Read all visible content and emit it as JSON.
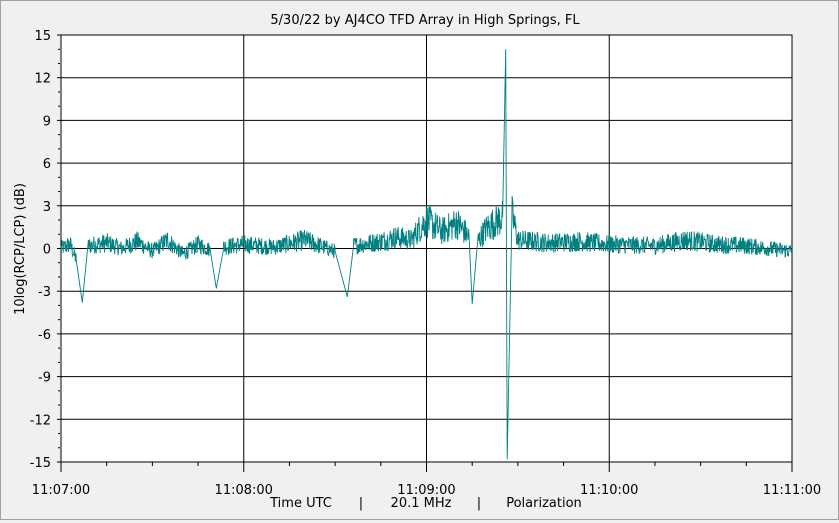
{
  "chart_data": {
    "type": "line",
    "title": "5/30/22  by  AJ4CO TFD Array  in  High Springs, FL",
    "ylabel": "10log(RCP/LCP)  (dB)",
    "xlabel_parts": [
      "Time UTC",
      "|",
      "20.1 MHz",
      "|",
      "Polarization"
    ],
    "ylim": [
      -15,
      15
    ],
    "yticks": [
      "15",
      "12",
      "9",
      "6",
      "3",
      "0",
      "-3",
      "-6",
      "-9",
      "-12",
      "-15"
    ],
    "xticks": [
      "11:07:00",
      "11:08:00",
      "11:09:00",
      "11:10:00",
      "11:11:00"
    ],
    "grid": true,
    "line_color": "#008080",
    "series": [
      {
        "x_range": [
          "11:07:00",
          "11:11:00"
        ],
        "points": [
          [
            "11:07:00",
            0.0
          ],
          [
            "11:07:03",
            0.3
          ],
          [
            "11:07:05",
            -0.8
          ],
          [
            "11:07:07",
            -3.8
          ],
          [
            "11:07:09",
            0.2
          ],
          [
            "11:07:15",
            0.4
          ],
          [
            "11:07:20",
            0.0
          ],
          [
            "11:07:25",
            0.5
          ],
          [
            "11:07:30",
            -0.2
          ],
          [
            "11:07:35",
            0.6
          ],
          [
            "11:07:40",
            -0.4
          ],
          [
            "11:07:45",
            0.3
          ],
          [
            "11:07:49",
            -0.1
          ],
          [
            "11:07:51",
            -2.8
          ],
          [
            "11:07:53",
            0.1
          ],
          [
            "11:08:00",
            0.3
          ],
          [
            "11:08:10",
            0.1
          ],
          [
            "11:08:20",
            0.6
          ],
          [
            "11:08:30",
            -0.2
          ],
          [
            "11:08:34",
            -3.4
          ],
          [
            "11:08:36",
            0.2
          ],
          [
            "11:08:45",
            0.5
          ],
          [
            "11:08:50",
            0.8
          ],
          [
            "11:08:55",
            0.6
          ],
          [
            "11:08:58",
            1.5
          ],
          [
            "11:09:00",
            2.0
          ],
          [
            "11:09:05",
            1.2
          ],
          [
            "11:09:10",
            1.8
          ],
          [
            "11:09:14",
            0.8
          ],
          [
            "11:09:15",
            -3.9
          ],
          [
            "11:09:17",
            0.6
          ],
          [
            "11:09:20",
            1.5
          ],
          [
            "11:09:25",
            2.2
          ],
          [
            "11:09:26",
            14.0
          ],
          [
            "11:09:26.5",
            -14.8
          ],
          [
            "11:09:28",
            2.5
          ],
          [
            "11:09:30",
            0.6
          ],
          [
            "11:09:40",
            0.4
          ],
          [
            "11:09:50",
            0.5
          ],
          [
            "11:10:00",
            0.3
          ],
          [
            "11:10:15",
            0.2
          ],
          [
            "11:10:25",
            0.6
          ],
          [
            "11:10:35",
            0.3
          ],
          [
            "11:10:45",
            0.2
          ],
          [
            "11:11:00",
            -0.2
          ]
        ]
      }
    ]
  }
}
